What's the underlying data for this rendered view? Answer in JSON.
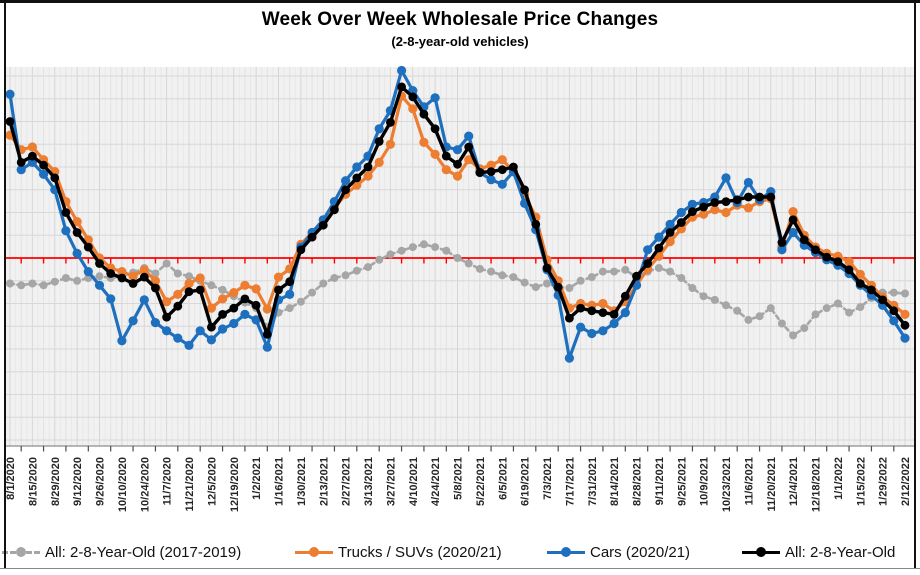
{
  "title": "Week Over Week Wholesale Price Changes",
  "subtitle": "(2-8-year-old vehicles)",
  "legend": {
    "items": [
      {
        "label": "All: 2-8-Year-Old (2017-2019)",
        "series": 0
      },
      {
        "label": "Trucks / SUVs (2020/21)",
        "series": 1
      },
      {
        "label": "Cars (2020/21)",
        "series": 2
      },
      {
        "label": "All: 2-8-Year-Old",
        "series": 3
      }
    ]
  },
  "colors": {
    "zero_line": "#FF0000",
    "plot_background": "#F1F1F1",
    "grid_major": "#D6D6D6",
    "grid_minor": "#E8E8E8",
    "axis_line": "#8C8C8C",
    "tick": "#4d4d4d",
    "label_text": "#262626"
  },
  "chart_data": {
    "type": "line",
    "title": "Week Over Week Wholesale Price Changes",
    "subtitle": "(2-8-year-old vehicles)",
    "x_axis_note": "weekly data points, tick labels every 2 weeks, labels rotated 90deg",
    "y_axis_note": "y tick labels cropped out of screenshot; red line = 0% weekly change, gridlines every 0.25%",
    "ylabel": "",
    "xlabel": "",
    "ylim": [
      -2.1,
      2.1
    ],
    "gridline_step_pct": 0.25,
    "zero_line": 0,
    "x_tick_labels": [
      "8/1/2020",
      "8/15/2020",
      "8/29/2020",
      "9/12/2020",
      "9/26/2020",
      "10/10/2020",
      "10/24/2020",
      "11/7/2020",
      "11/21/2020",
      "12/5/2020",
      "12/19/2020",
      "1/2/2021",
      "1/16/2021",
      "1/30/2021",
      "2/13/2021",
      "2/27/2021",
      "3/13/2021",
      "3/27/2021",
      "4/10/2021",
      "4/24/2021",
      "5/8/2021",
      "5/22/2021",
      "6/5/2021",
      "6/19/2021",
      "7/3/2021",
      "7/17/2021",
      "7/31/2021",
      "8/14/2021",
      "8/28/2021",
      "9/11/2021",
      "9/25/2021",
      "10/9/2021",
      "10/23/2021",
      "11/6/2021",
      "11/20/2021",
      "12/4/2021",
      "12/18/2021",
      "1/1/2022",
      "1/15/2022",
      "1/29/2022",
      "2/12/2022"
    ],
    "weeks_per_point": 1,
    "points_per_label": 2,
    "series": [
      {
        "name": "All: 2-8-Year-Old (2017-2019)",
        "color": "#A6A6A6",
        "line_style": "dashed",
        "line_width": 2.6,
        "marker_radius": 4.0,
        "values": [
          -0.28,
          -0.3,
          -0.28,
          -0.3,
          -0.26,
          -0.22,
          -0.25,
          -0.22,
          -0.2,
          -0.22,
          -0.2,
          -0.16,
          -0.11,
          -0.17,
          -0.06,
          -0.17,
          -0.2,
          -0.25,
          -0.3,
          -0.35,
          -0.42,
          -0.49,
          -0.55,
          -0.76,
          -0.6,
          -0.55,
          -0.48,
          -0.38,
          -0.28,
          -0.22,
          -0.19,
          -0.14,
          -0.1,
          -0.02,
          0.04,
          0.08,
          0.12,
          0.15,
          0.12,
          0.08,
          0.0,
          -0.06,
          -0.12,
          -0.15,
          -0.19,
          -0.21,
          -0.27,
          -0.32,
          -0.28,
          -0.32,
          -0.33,
          -0.25,
          -0.21,
          -0.15,
          -0.15,
          -0.13,
          -0.21,
          -0.15,
          -0.11,
          -0.15,
          -0.22,
          -0.33,
          -0.42,
          -0.46,
          -0.52,
          -0.58,
          -0.68,
          -0.64,
          -0.55,
          -0.72,
          -0.85,
          -0.77,
          -0.62,
          -0.55,
          -0.5,
          -0.6,
          -0.54,
          -0.44,
          -0.38,
          -0.38,
          -0.39
        ]
      },
      {
        "name": "Trucks / SUVs (2020/21)",
        "color": "#ED7D31",
        "line_style": "solid",
        "line_width": 3.2,
        "marker_radius": 4.6,
        "values": [
          1.35,
          1.19,
          1.22,
          1.08,
          0.95,
          0.62,
          0.4,
          0.2,
          0.0,
          -0.11,
          -0.15,
          -0.2,
          -0.13,
          -0.25,
          -0.48,
          -0.4,
          -0.28,
          -0.22,
          -0.55,
          -0.45,
          -0.38,
          -0.3,
          -0.34,
          -0.56,
          -0.21,
          -0.12,
          0.15,
          0.28,
          0.42,
          0.55,
          0.7,
          0.8,
          0.9,
          1.05,
          1.25,
          1.78,
          1.64,
          1.27,
          1.14,
          0.97,
          0.9,
          1.08,
          0.98,
          1.02,
          1.08,
          0.95,
          0.7,
          0.45,
          -0.02,
          -0.25,
          -0.55,
          -0.5,
          -0.52,
          -0.5,
          -0.58,
          -0.48,
          -0.3,
          -0.12,
          0.02,
          0.18,
          0.32,
          0.45,
          0.48,
          0.53,
          0.5,
          0.58,
          0.55,
          0.62,
          0.65,
          0.12,
          0.51,
          0.25,
          0.12,
          0.05,
          0.02,
          -0.04,
          -0.18,
          -0.3,
          -0.43,
          -0.52,
          -0.62
        ]
      },
      {
        "name": "Cars (2020/21)",
        "color": "#1E6FBE",
        "line_style": "solid",
        "line_width": 3.2,
        "marker_radius": 4.6,
        "values": [
          1.8,
          0.97,
          1.05,
          0.92,
          0.75,
          0.3,
          0.05,
          -0.15,
          -0.3,
          -0.45,
          -0.91,
          -0.69,
          -0.46,
          -0.71,
          -0.8,
          -0.88,
          -0.96,
          -0.8,
          -0.9,
          -0.78,
          -0.72,
          -0.62,
          -0.68,
          -0.98,
          -0.46,
          -0.4,
          0.12,
          0.28,
          0.42,
          0.62,
          0.85,
          1.0,
          1.12,
          1.42,
          1.62,
          2.06,
          1.84,
          1.66,
          1.76,
          1.22,
          1.19,
          1.34,
          0.94,
          0.86,
          0.81,
          0.95,
          0.6,
          0.31,
          -0.13,
          -0.41,
          -1.1,
          -0.76,
          -0.83,
          -0.8,
          -0.72,
          -0.6,
          -0.3,
          0.09,
          0.23,
          0.37,
          0.5,
          0.59,
          0.61,
          0.67,
          0.88,
          0.61,
          0.83,
          0.64,
          0.73,
          0.09,
          0.28,
          0.14,
          0.06,
          -0.02,
          -0.08,
          -0.17,
          -0.3,
          -0.41,
          -0.52,
          -0.69,
          -0.88
        ]
      },
      {
        "name": "All: 2-8-Year-Old",
        "color": "#000000",
        "line_style": "solid",
        "line_width": 3.4,
        "marker_radius": 4.4,
        "values": [
          1.5,
          1.05,
          1.12,
          1.02,
          0.88,
          0.5,
          0.28,
          0.12,
          -0.06,
          -0.17,
          -0.22,
          -0.28,
          -0.21,
          -0.33,
          -0.65,
          -0.53,
          -0.37,
          -0.35,
          -0.76,
          -0.62,
          -0.55,
          -0.45,
          -0.52,
          -0.84,
          -0.35,
          -0.26,
          0.09,
          0.23,
          0.36,
          0.53,
          0.75,
          0.88,
          1.0,
          1.28,
          1.49,
          1.88,
          1.77,
          1.58,
          1.42,
          1.12,
          1.03,
          1.22,
          0.94,
          0.95,
          0.97,
          1.0,
          0.75,
          0.37,
          -0.11,
          -0.32,
          -0.66,
          -0.55,
          -0.58,
          -0.6,
          -0.62,
          -0.42,
          -0.2,
          -0.06,
          0.11,
          0.28,
          0.39,
          0.51,
          0.56,
          0.61,
          0.62,
          0.64,
          0.67,
          0.67,
          0.67,
          0.17,
          0.42,
          0.2,
          0.09,
          0.01,
          -0.04,
          -0.13,
          -0.28,
          -0.35,
          -0.46,
          -0.58,
          -0.74
        ]
      }
    ],
    "legend_position": "bottom"
  }
}
